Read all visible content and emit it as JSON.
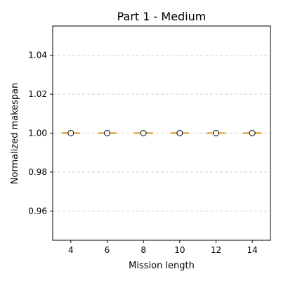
{
  "chart_data": {
    "type": "box",
    "title": "Part 1 - Medium",
    "xlabel": "Mission length",
    "ylabel": "Normalized makespan",
    "categories": [
      "4",
      "6",
      "8",
      "10",
      "12",
      "14"
    ],
    "series": [
      {
        "values": [
          {
            "x": 4,
            "median": 1.0,
            "mean": 1.0,
            "q1": 1.0,
            "q3": 1.0,
            "whisker_low": 1.0,
            "whisker_high": 1.0
          },
          {
            "x": 6,
            "median": 1.0,
            "mean": 1.0,
            "q1": 1.0,
            "q3": 1.0,
            "whisker_low": 1.0,
            "whisker_high": 1.0
          },
          {
            "x": 8,
            "median": 1.0,
            "mean": 1.0,
            "q1": 1.0,
            "q3": 1.0,
            "whisker_low": 1.0,
            "whisker_high": 1.0
          },
          {
            "x": 10,
            "median": 1.0,
            "mean": 1.0,
            "q1": 1.0,
            "q3": 1.0,
            "whisker_low": 1.0,
            "whisker_high": 1.0
          },
          {
            "x": 12,
            "median": 1.0,
            "mean": 1.0,
            "q1": 1.0,
            "q3": 1.0,
            "whisker_low": 1.0,
            "whisker_high": 1.0
          },
          {
            "x": 14,
            "median": 1.0,
            "mean": 1.0,
            "q1": 1.0,
            "q3": 1.0,
            "whisker_low": 1.0,
            "whisker_high": 1.0
          }
        ]
      }
    ],
    "xlim": [
      3,
      15
    ],
    "ylim": [
      0.945,
      1.055
    ],
    "yticks": [
      "0.96",
      "0.98",
      "1.00",
      "1.02",
      "1.04"
    ],
    "grid": "y",
    "colors": {
      "box": "#e0a94a",
      "mean_marker_fill": "#ffffff",
      "mean_marker_edge": "#000000",
      "grid": "#d0d0d0"
    }
  }
}
